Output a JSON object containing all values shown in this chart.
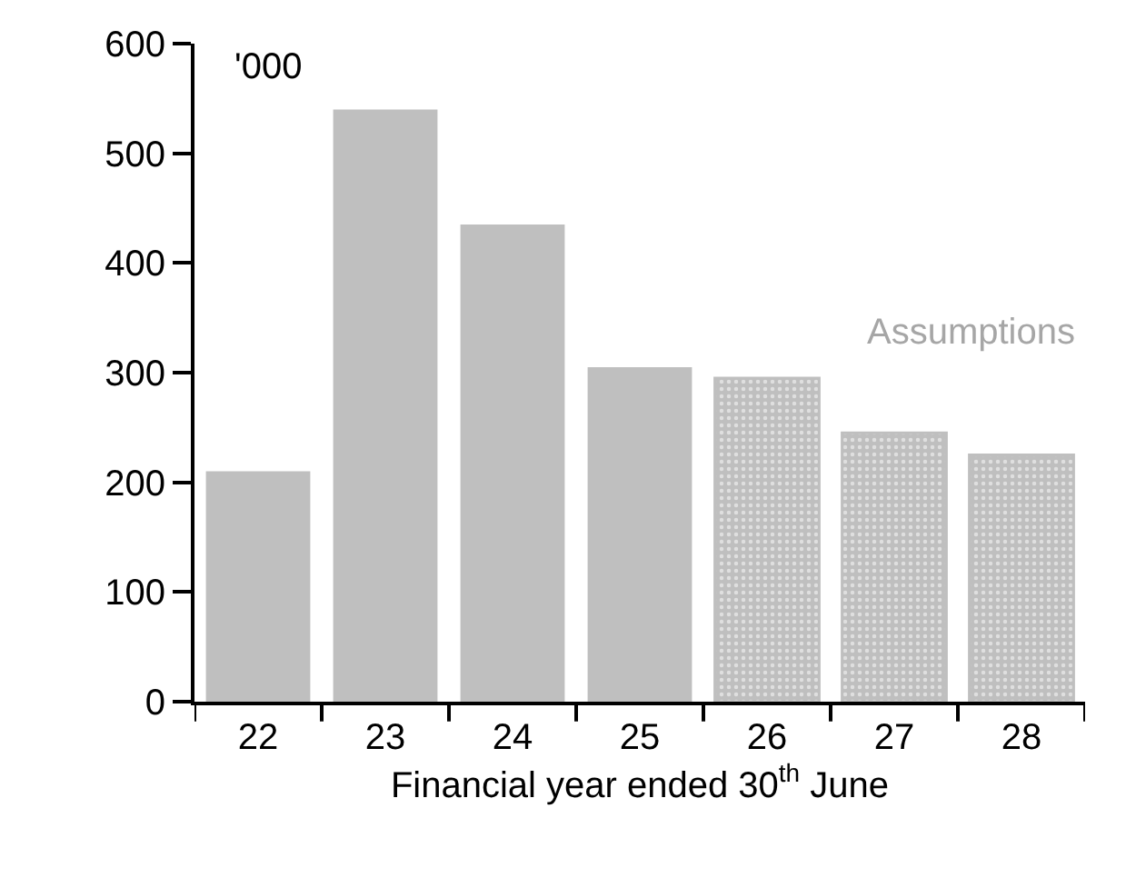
{
  "chart_data": {
    "type": "bar",
    "xlabel": "Financial year ended 30$^{th}$ June",
    "ylabel": "'000",
    "categories": [
      "22",
      "23",
      "24",
      "25",
      "26",
      "27",
      "28"
    ],
    "series": [
      {
        "color": "#bfbfbf",
        "values": [
          210,
          540,
          435,
          305,
          null,
          null,
          null
        ]
      },
      {
        "name": "Assumptions",
        "color": "#bfbfbf",
        "line_style": "dotted",
        "values": [
          null,
          null,
          null,
          null,
          295,
          245,
          225
        ]
      }
    ],
    "ylim": [
      0,
      600
    ],
    "yticks": [
      0,
      100,
      200,
      300,
      400,
      500,
      600
    ],
    "legend": false
  }
}
